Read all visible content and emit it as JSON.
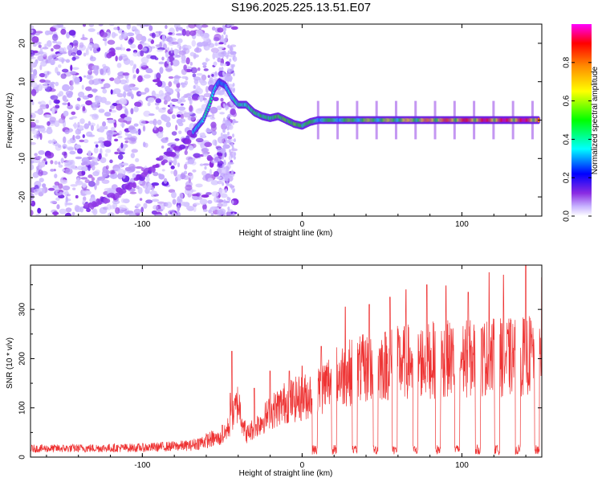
{
  "title": "S196.2025.225.13.51.E07",
  "chart_data": [
    {
      "type": "heatmap",
      "title": "S196.2025.225.13.51.E07",
      "xlabel": "Height of straight line (km)",
      "ylabel": "Frequency (Hz)",
      "xlim": [
        -170,
        150
      ],
      "ylim": [
        -25,
        25
      ],
      "x_ticks": [
        "-100",
        "0",
        "100"
      ],
      "x_tick_values": [
        -100,
        0,
        100
      ],
      "y_ticks": [
        "20",
        "10",
        "0",
        "-10",
        "-20"
      ],
      "y_tick_values": [
        20,
        10,
        0,
        -10,
        -20
      ],
      "colorbar": {
        "label": "Normalized spectral amplitude",
        "range": [
          0.0,
          1.0
        ],
        "ticks": [
          "0.0",
          "0.2",
          "0.4",
          "0.6",
          "0.8"
        ],
        "tick_values": [
          0.0,
          0.2,
          0.4,
          0.6,
          0.8
        ],
        "colors": [
          "#ffffff",
          "#c8b4ff",
          "#8a2be2",
          "#0000ff",
          "#00ffff",
          "#00ff00",
          "#ffff00",
          "#ff8c00",
          "#ff0000",
          "#ff00ff"
        ]
      },
      "noise_region_x": [
        -170,
        -42
      ],
      "signal_track": {
        "x": [
          -68,
          -62,
          -58,
          -55,
          -52,
          -48,
          -44,
          -40,
          -35,
          -30,
          -25,
          -20,
          -15,
          -10,
          -5,
          0,
          5,
          10,
          20,
          30,
          40,
          50,
          60,
          70,
          80,
          90,
          100,
          110,
          120,
          130,
          140,
          148
        ],
        "freq": [
          -3,
          0,
          4,
          8,
          10,
          9,
          6,
          4,
          4,
          2,
          1,
          0.5,
          1,
          0,
          -1,
          -1.5,
          -0.5,
          0,
          0,
          0,
          0,
          0,
          0,
          0,
          0,
          0,
          0,
          0,
          0,
          0,
          0,
          0
        ],
        "amplitude": [
          0.35,
          0.4,
          0.45,
          0.4,
          0.3,
          0.35,
          0.4,
          0.45,
          0.45,
          0.5,
          0.5,
          0.5,
          0.55,
          0.55,
          0.55,
          0.55,
          0.5,
          0.5,
          0.5,
          0.55,
          0.6,
          0.6,
          0.65,
          0.7,
          0.8,
          0.85,
          0.9,
          0.92,
          0.95,
          0.95,
          0.95,
          0.95
        ]
      },
      "diagonal_band": {
        "x": [
          -135,
          -120,
          -105,
          -90,
          -80,
          -72,
          -66
        ],
        "freq": [
          -23,
          -20,
          -16,
          -11,
          -8,
          -5,
          -2
        ]
      }
    },
    {
      "type": "line",
      "xlabel": "Height of straight line (km)",
      "ylabel": "SNR (10 * v/v)",
      "xlim": [
        -170,
        150
      ],
      "ylim": [
        0,
        390
      ],
      "x_ticks": [
        "-100",
        "0",
        "100"
      ],
      "x_tick_values": [
        -100,
        0,
        100
      ],
      "y_ticks": [
        "0",
        "100",
        "200",
        "300"
      ],
      "y_tick_values": [
        0,
        100,
        200,
        300
      ],
      "color": "#ee3333",
      "noise_level": [
        {
          "x": -170,
          "snr": 18
        },
        {
          "x": -100,
          "snr": 20
        },
        {
          "x": -70,
          "snr": 25
        },
        {
          "x": -55,
          "snr": 40
        }
      ],
      "envelope": {
        "x": [
          -50,
          -45,
          -40,
          -35,
          -30,
          -20,
          -10,
          0,
          10,
          20,
          30,
          40,
          50,
          60,
          70,
          80,
          90,
          100,
          110,
          120,
          130,
          140,
          150
        ],
        "snr": [
          50,
          90,
          150,
          60,
          80,
          120,
          150,
          160,
          180,
          215,
          230,
          240,
          250,
          255,
          260,
          262,
          265,
          265,
          268,
          270,
          270,
          275,
          280
        ]
      },
      "peaks": [
        {
          "x": -50,
          "snr": 65
        },
        {
          "x": -45,
          "snr": 130
        },
        {
          "x": -44,
          "snr": 215
        },
        {
          "x": -30,
          "snr": 140
        },
        {
          "x": -20,
          "snr": 175
        },
        {
          "x": -8,
          "snr": 175
        },
        {
          "x": 0,
          "snr": 185
        },
        {
          "x": 12,
          "snr": 225
        },
        {
          "x": 27,
          "snr": 305
        },
        {
          "x": 42,
          "snr": 310
        },
        {
          "x": 55,
          "snr": 325
        },
        {
          "x": 65,
          "snr": 340
        },
        {
          "x": 78,
          "snr": 350
        },
        {
          "x": 90,
          "snr": 348
        },
        {
          "x": 104,
          "snr": 335
        },
        {
          "x": 117,
          "snr": 375
        },
        {
          "x": 126,
          "snr": 370
        },
        {
          "x": 140,
          "snr": 390
        },
        {
          "x": 150,
          "snr": 365
        }
      ],
      "dropouts_x": [
        8,
        20,
        33,
        46,
        58,
        71,
        85,
        97,
        110,
        122,
        135,
        147
      ]
    }
  ]
}
